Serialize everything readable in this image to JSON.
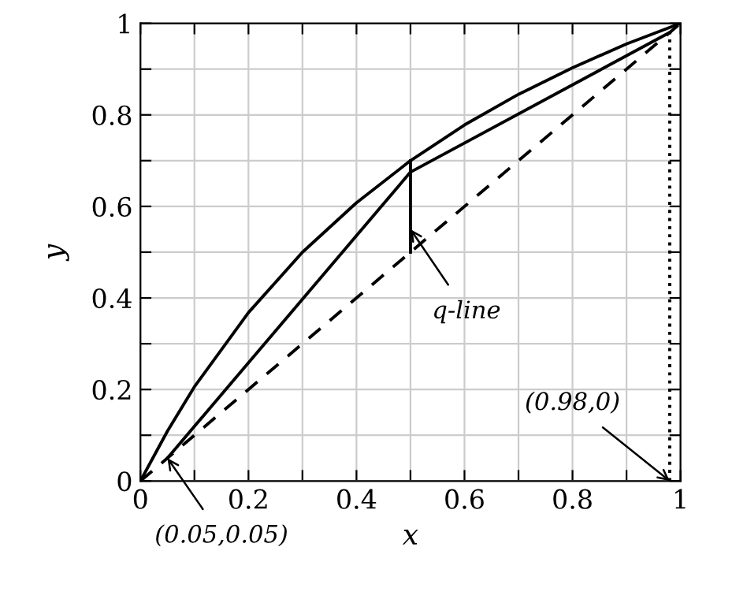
{
  "chart_data": {
    "type": "line",
    "xlabel": "x",
    "ylabel": "y",
    "xlim": [
      0,
      1
    ],
    "ylim": [
      0,
      1
    ],
    "xticks": [
      0,
      {
        "value": 0.1,
        "label": null
      },
      0.2,
      {
        "value": 0.3,
        "label": null
      },
      0.4,
      {
        "value": 0.5,
        "label": null
      },
      0.6,
      {
        "value": 0.7,
        "label": null
      },
      0.8,
      {
        "value": 0.9,
        "label": null
      },
      1
    ],
    "yticks": [
      0,
      {
        "value": 0.1,
        "label": null
      },
      0.2,
      {
        "value": 0.3,
        "label": null
      },
      0.4,
      {
        "value": 0.5,
        "label": null
      },
      0.6,
      {
        "value": 0.7,
        "label": null
      },
      0.8,
      {
        "value": 0.9,
        "label": null
      },
      1
    ],
    "grid": true,
    "series": [
      {
        "color": "#000000",
        "line_style": "solid",
        "x": [
          0,
          0.05,
          0.1,
          0.2,
          0.3,
          0.4,
          0.5,
          0.6,
          0.7,
          0.8,
          0.9,
          1
        ],
        "values": [
          0,
          0.109,
          0.206,
          0.368,
          0.5,
          0.608,
          0.7,
          0.778,
          0.845,
          0.903,
          0.955,
          1
        ]
      },
      {
        "color": "#000000",
        "line_style": "dashed",
        "x": [
          0,
          1
        ],
        "values": [
          0,
          1
        ]
      },
      {
        "color": "#000000",
        "line_style": "solid",
        "x": [
          0.05,
          0.5,
          0.98
        ],
        "values": [
          0.05,
          0.675,
          0.98
        ]
      },
      {
        "color": "#000000",
        "line_style": "solid",
        "x": [
          0.5,
          0.5
        ],
        "values": [
          0.5,
          0.7
        ]
      },
      {
        "color": "#000000",
        "line_style": "dotted",
        "x": [
          0.98,
          0.98
        ],
        "values": [
          0,
          0.98
        ]
      }
    ],
    "annotations": [
      {
        "text": "q-line",
        "x": 0.5,
        "y": 0.55
      },
      {
        "text": "(0.98,0)",
        "x": 0.98,
        "y": 0
      },
      {
        "text": "(0.05,0.05)",
        "x": 0.05,
        "y": 0.05
      }
    ]
  }
}
